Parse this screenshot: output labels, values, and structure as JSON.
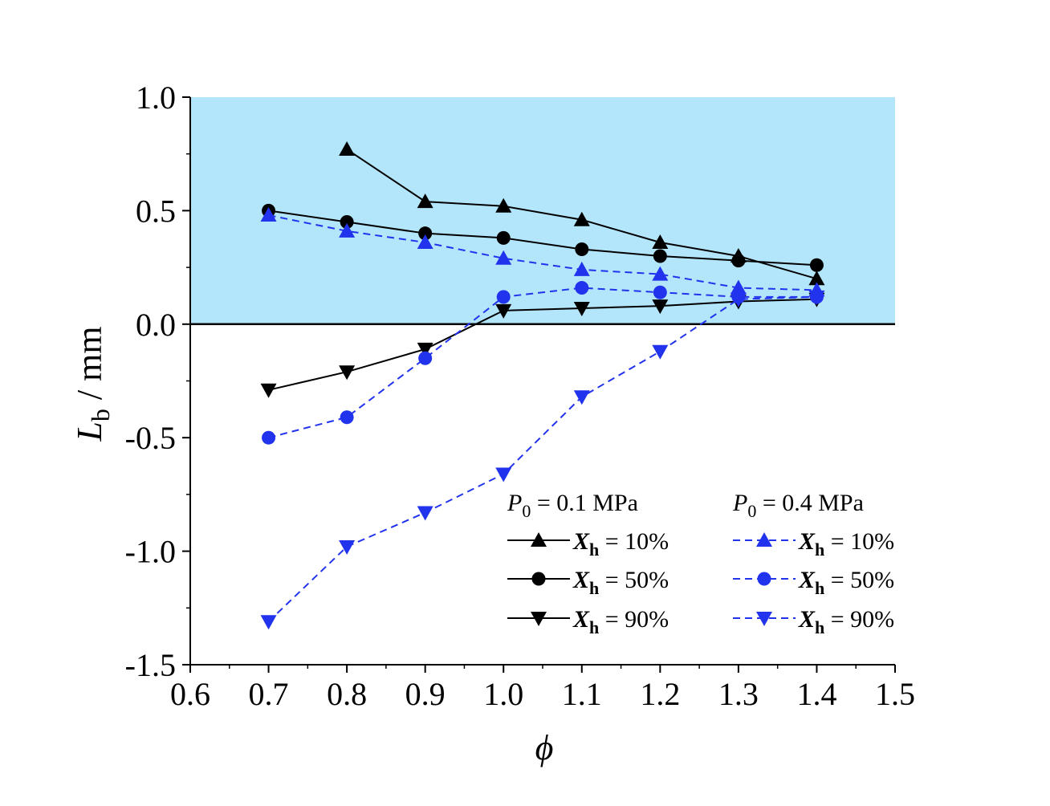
{
  "chart_data": {
    "type": "line",
    "x_label": "ϕ",
    "y_label_main": "L",
    "y_label_sub": "b",
    "y_label_unit": " / mm",
    "xlim": [
      0.6,
      1.5
    ],
    "ylim": [
      -1.5,
      1.0
    ],
    "x_ticks": [
      "0.6",
      "0.7",
      "0.8",
      "0.9",
      "1.0",
      "1.1",
      "1.2",
      "1.3",
      "1.4",
      "1.5"
    ],
    "y_ticks": [
      "1.0",
      "0.5",
      "0.0",
      "-0.5",
      "-1.0",
      "-1.5"
    ],
    "shaded_region": {
      "y_from": 0.0,
      "y_to": 1.0,
      "color": "#b3e5fb"
    },
    "zero_line": true,
    "legend_groups": [
      {
        "title_main": "P",
        "title_sub": "0",
        "title_rest": " = 0.1 MPa"
      },
      {
        "title_main": "P",
        "title_sub": "0",
        "title_rest": " = 0.4 MPa"
      }
    ],
    "series": [
      {
        "name_main": "X",
        "name_sub": "h",
        "name_rest": " = 10%",
        "group": 0,
        "color": "#000000",
        "dash": false,
        "marker": "triangle-up",
        "x": [
          0.8,
          0.9,
          1.0,
          1.1,
          1.2,
          1.3,
          1.4
        ],
        "y": [
          0.77,
          0.54,
          0.52,
          0.46,
          0.36,
          0.3,
          0.2
        ]
      },
      {
        "name_main": "X",
        "name_sub": "h",
        "name_rest": " = 50%",
        "group": 0,
        "color": "#000000",
        "dash": false,
        "marker": "circle",
        "x": [
          0.7,
          0.8,
          0.9,
          1.0,
          1.1,
          1.2,
          1.3,
          1.4
        ],
        "y": [
          0.5,
          0.45,
          0.4,
          0.38,
          0.33,
          0.3,
          0.28,
          0.26
        ]
      },
      {
        "name_main": "X",
        "name_sub": "h",
        "name_rest": " = 90%",
        "group": 0,
        "color": "#000000",
        "dash": false,
        "marker": "triangle-down",
        "x": [
          0.7,
          0.8,
          0.9,
          1.0,
          1.1,
          1.2,
          1.3,
          1.4
        ],
        "y": [
          -0.29,
          -0.21,
          -0.11,
          0.06,
          0.07,
          0.08,
          0.1,
          0.11
        ]
      },
      {
        "name_main": "X",
        "name_sub": "h",
        "name_rest": " = 10%",
        "group": 1,
        "color": "#2233ee",
        "dash": true,
        "marker": "triangle-up",
        "x": [
          0.7,
          0.8,
          0.9,
          1.0,
          1.1,
          1.2,
          1.3,
          1.4
        ],
        "y": [
          0.48,
          0.41,
          0.36,
          0.29,
          0.24,
          0.22,
          0.16,
          0.15
        ]
      },
      {
        "name_main": "X",
        "name_sub": "h",
        "name_rest": " = 50%",
        "group": 1,
        "color": "#2233ee",
        "dash": true,
        "marker": "circle",
        "x": [
          0.7,
          0.8,
          0.9,
          1.0,
          1.1,
          1.2,
          1.3,
          1.4
        ],
        "y": [
          -0.5,
          -0.41,
          -0.15,
          0.12,
          0.16,
          0.14,
          0.12,
          0.12
        ]
      },
      {
        "name_main": "X",
        "name_sub": "h",
        "name_rest": " = 90%",
        "group": 1,
        "color": "#2233ee",
        "dash": true,
        "marker": "triangle-down",
        "x": [
          0.7,
          0.8,
          0.9,
          1.0,
          1.1,
          1.2,
          1.3,
          1.4
        ],
        "y": [
          -1.31,
          -0.98,
          -0.83,
          -0.66,
          -0.32,
          -0.12,
          0.11,
          0.12
        ]
      }
    ]
  }
}
